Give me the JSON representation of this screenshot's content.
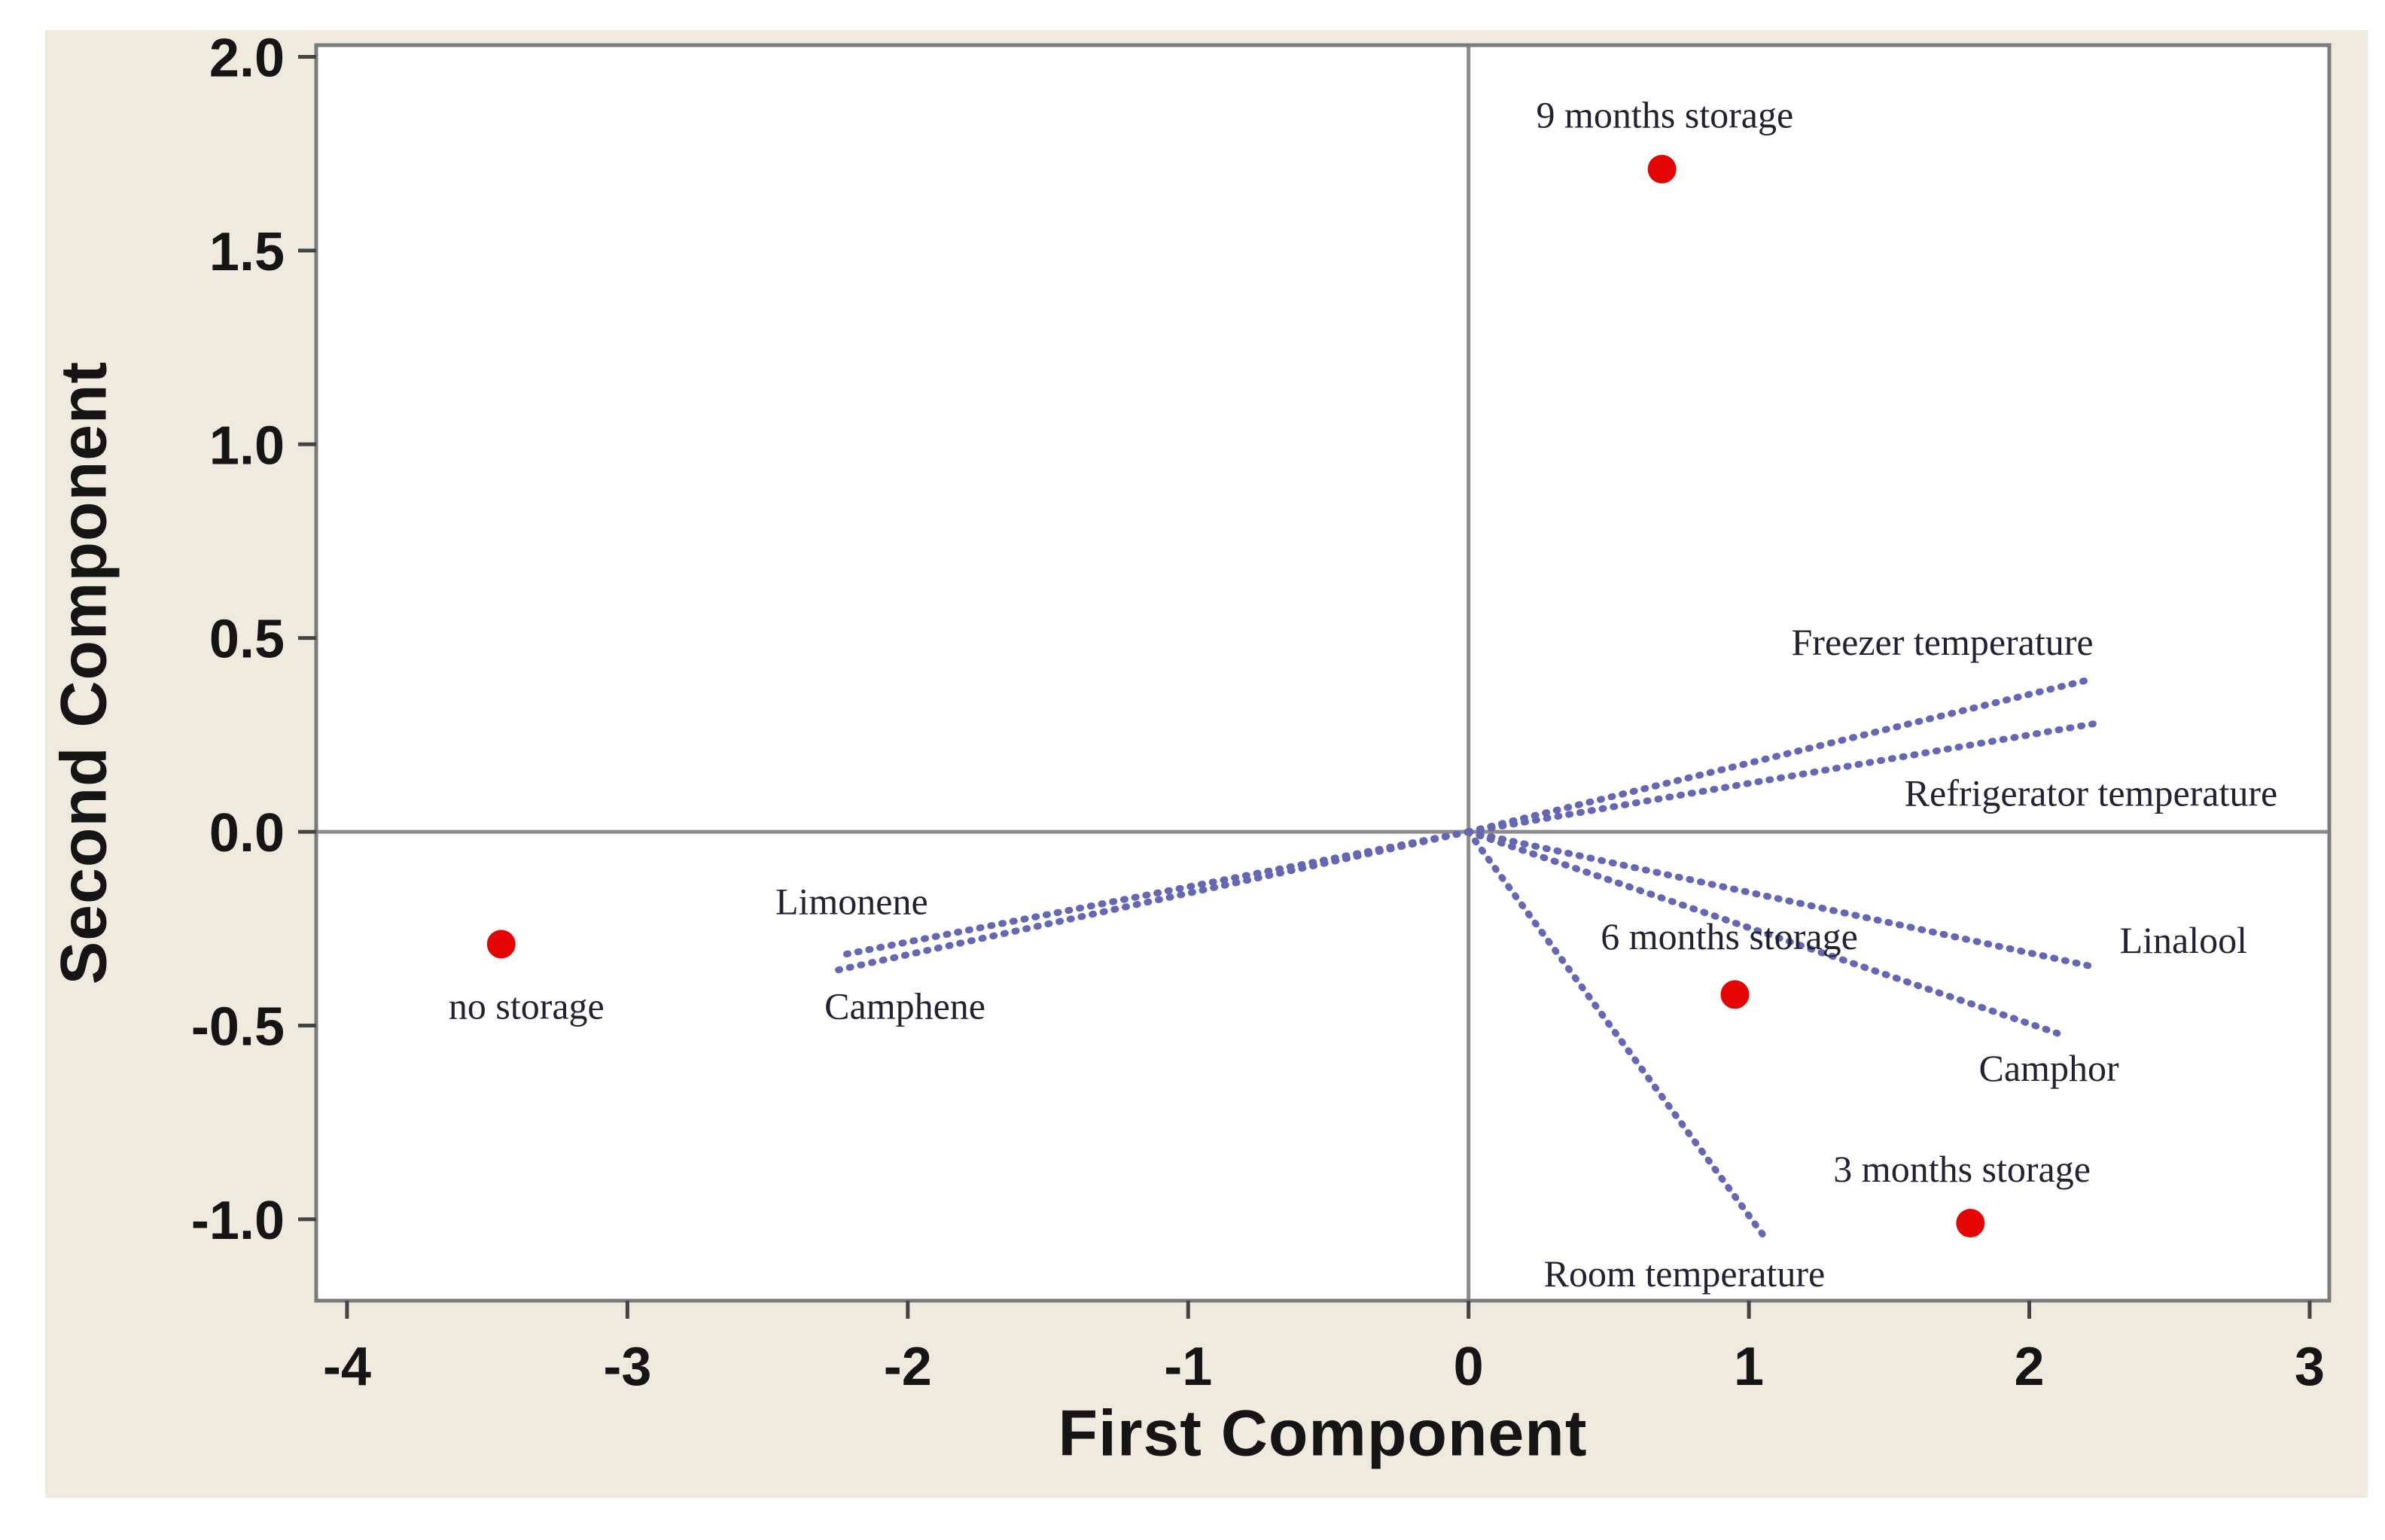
{
  "chart_data": {
    "type": "scatter",
    "subtype": "pca-biplot",
    "title": "",
    "xlabel": "First Component",
    "ylabel": "Second Component",
    "xlim": [
      -4.11,
      3.07
    ],
    "ylim": [
      -1.21,
      2.03
    ],
    "xticks": [
      -4,
      -3,
      -2,
      -1,
      0,
      1,
      2,
      3
    ],
    "yticks": [
      2.0,
      1.5,
      1.0,
      0.5,
      0.0,
      -0.5,
      -1.0
    ],
    "grid": false,
    "legend": "none",
    "reference_lines": {
      "x": 0.0,
      "y": 0.0
    },
    "series": [
      {
        "name": "scores",
        "marker": "filled-circle",
        "points": [
          {
            "label": "no storage",
            "x": -3.45,
            "y": -0.29,
            "label_x": -3.36,
            "label_y": -0.45
          },
          {
            "label": "9 months storage",
            "x": 0.69,
            "y": 1.71,
            "label_x": 0.7,
            "label_y": 1.85
          },
          {
            "label": "6 months storage",
            "x": 0.95,
            "y": -0.42,
            "label_x": 0.93,
            "label_y": -0.27
          },
          {
            "label": "3 months storage",
            "x": 1.79,
            "y": -1.01,
            "label_x": 1.76,
            "label_y": -0.87
          }
        ]
      },
      {
        "name": "loadings",
        "marker": "vector-from-origin",
        "points": [
          {
            "label": "Freezer temperature",
            "x": 2.2,
            "y": 0.39,
            "label_x": 1.69,
            "label_y": 0.49
          },
          {
            "label": "Refrigerator temperature",
            "x": 2.24,
            "y": 0.28,
            "label_x": 2.22,
            "label_y": 0.1
          },
          {
            "label": "Linalool",
            "x": 2.24,
            "y": -0.35,
            "label_x": 2.55,
            "label_y": -0.28
          },
          {
            "label": "Camphor",
            "x": 2.1,
            "y": -0.52,
            "label_x": 2.07,
            "label_y": -0.61
          },
          {
            "label": "Room temperature",
            "x": 1.05,
            "y": -1.04,
            "label_x": 0.77,
            "label_y": -1.14
          },
          {
            "label": "Limonene",
            "x": -2.25,
            "y": -0.32,
            "label_x": -2.2,
            "label_y": -0.18
          },
          {
            "label": "Camphene",
            "x": -2.27,
            "y": -0.36,
            "label_x": -2.01,
            "label_y": -0.45
          }
        ]
      }
    ],
    "colors": {
      "point": "#e30505",
      "vector": "#6567b2",
      "reference_line": "#8c8c8c",
      "plot_border": "#7b7b7b",
      "tick": "#444444",
      "panel_background": "#eeeade",
      "plot_background": "#ffffff",
      "label_text": "#222233",
      "axis_text": "#151515"
    }
  }
}
